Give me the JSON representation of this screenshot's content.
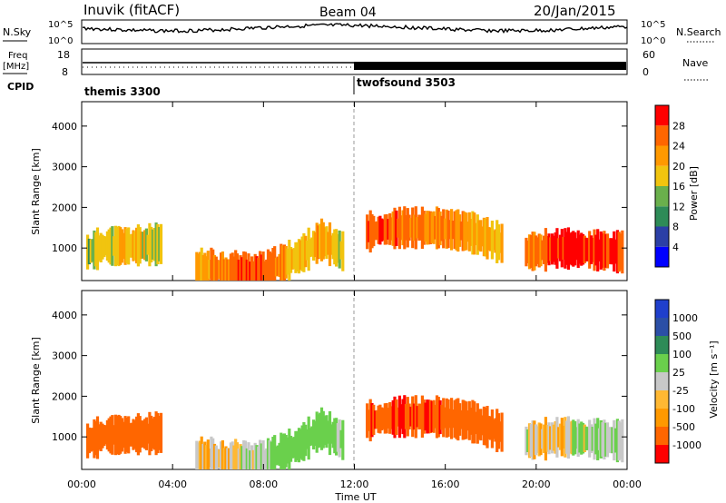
{
  "header": {
    "station": "Inuvik (fitACF)",
    "beam": "Beam 04",
    "date": "20/Jan/2015"
  },
  "top_panels": {
    "nsky": {
      "label": "N.Sky",
      "ticks": [
        "10^5",
        "10^0"
      ]
    },
    "nsearch": {
      "label": "N.Search",
      "ticks": [
        "10^5",
        "10^0"
      ]
    },
    "freq": {
      "label_line1": "Freq",
      "label_line2": "[MHz]",
      "ticks": [
        "18",
        "8"
      ]
    },
    "nave": {
      "label": "Nave",
      "ticks": [
        "60",
        "0"
      ]
    },
    "cpid": {
      "label": "CPID",
      "segments": [
        {
          "name": "themis 3300",
          "start_hour": 0
        },
        {
          "name": "twofsound 3503",
          "start_hour": 12
        }
      ]
    }
  },
  "colors": {
    "power_scale": [
      "#0000ff",
      "#2b3fa6",
      "#2e8b57",
      "#6ab04c",
      "#f1c40f",
      "#ff9900",
      "#ff6600",
      "#ff0000"
    ],
    "velocity_scale": [
      "#ff0000",
      "#ff6600",
      "#ff9900",
      "#ffb833",
      "#c8c8c8",
      "#6ad04c",
      "#2e8b57",
      "#2b4fa6",
      "#1f3fcc"
    ],
    "ground_scatter": "#c8c8c8"
  },
  "chart_data": [
    {
      "type": "heatmap",
      "title": "Power",
      "ylabel": "Slant Range [km]",
      "xlabel": "Time UT",
      "x_ticks": [
        "00:00",
        "04:00",
        "08:00",
        "12:00",
        "16:00",
        "20:00",
        "00:00"
      ],
      "y_ticks": [
        "1000",
        "2000",
        "3000",
        "4000"
      ],
      "ylim": [
        200,
        4600
      ],
      "xlim_hours": [
        0,
        24
      ],
      "colorbar": {
        "label": "Power [dB]",
        "ticks": [
          "4",
          "8",
          "12",
          "16",
          "20",
          "24",
          "28"
        ]
      },
      "series": [
        {
          "hours": [
            0.2,
            1,
            2,
            3.5
          ],
          "range_km": [
            900,
            1050,
            1050,
            1100
          ],
          "power_db": [
            14,
            18,
            20,
            16
          ]
        },
        {
          "hours": [
            5,
            6.5,
            8,
            9.5,
            10.5,
            11.5
          ],
          "range_km": [
            500,
            450,
            400,
            800,
            1200,
            900
          ],
          "power_db": [
            20,
            26,
            28,
            18,
            22,
            16
          ]
        },
        {
          "hours": [
            12.5,
            14,
            15.5,
            17,
            18.5
          ],
          "range_km": [
            1400,
            1500,
            1500,
            1400,
            1100
          ],
          "power_db": [
            28,
            26,
            24,
            22,
            20
          ]
        },
        {
          "hours": [
            19.5,
            21,
            22.5,
            23.8
          ],
          "range_km": [
            900,
            1000,
            950,
            900
          ],
          "power_db": [
            24,
            30,
            30,
            28
          ]
        }
      ]
    },
    {
      "type": "heatmap",
      "title": "Velocity",
      "ylabel": "Slant Range [km]",
      "xlabel": "Time UT",
      "x_ticks": [
        "00:00",
        "04:00",
        "08:00",
        "12:00",
        "16:00",
        "20:00",
        "00:00"
      ],
      "y_ticks": [
        "1000",
        "2000",
        "3000",
        "4000"
      ],
      "ylim": [
        200,
        4600
      ],
      "xlim_hours": [
        0,
        24
      ],
      "colorbar": {
        "label": "Velocity [m s⁻¹]",
        "ticks": [
          "1000",
          "500",
          "100",
          "25",
          "-25",
          "-100",
          "-500",
          "-1000"
        ]
      },
      "series": [
        {
          "hours": [
            0.2,
            1,
            2,
            3.5
          ],
          "range_km": [
            900,
            1050,
            1050,
            1100
          ],
          "velocity_ms": [
            -200,
            -300,
            -250,
            -150
          ]
        },
        {
          "hours": [
            5,
            6.5,
            8,
            9.5,
            10.5,
            11.5
          ],
          "range_km": [
            500,
            450,
            400,
            800,
            1200,
            900
          ],
          "velocity_ms": [
            0,
            0,
            150,
            200,
            250,
            100
          ]
        },
        {
          "hours": [
            12.5,
            14,
            15.5,
            17,
            18.5
          ],
          "range_km": [
            1400,
            1500,
            1500,
            1400,
            1100
          ],
          "velocity_ms": [
            -400,
            -500,
            -450,
            -350,
            -200
          ]
        },
        {
          "hours": [
            19.5,
            21,
            22.5,
            23.8
          ],
          "range_km": [
            900,
            1000,
            950,
            900
          ],
          "velocity_ms": [
            50,
            0,
            120,
            80
          ]
        }
      ]
    }
  ]
}
